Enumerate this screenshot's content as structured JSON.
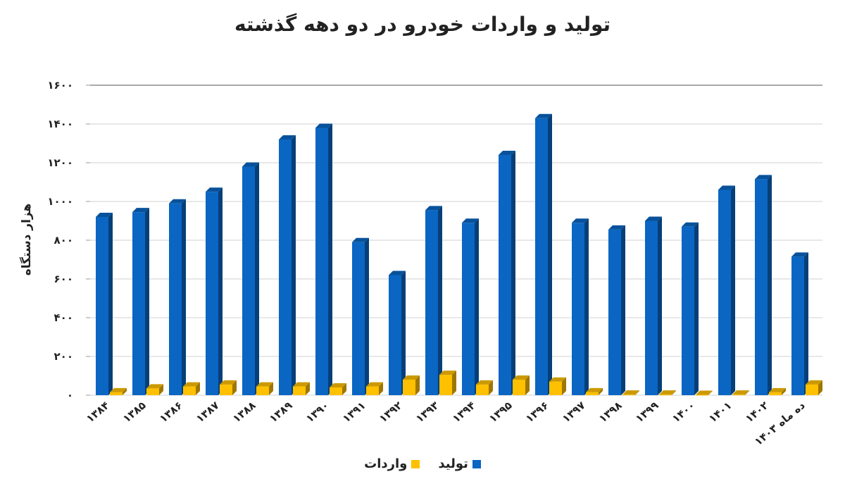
{
  "chart_data": {
    "type": "bar",
    "title": "تولید و واردات خودرو در دو دهه گذشته",
    "ylabel": "هزار دستگاه",
    "xlabel": "",
    "ylim": [
      0,
      1600
    ],
    "yticks": [
      "۰",
      "۲۰۰",
      "۴۰۰",
      "۶۰۰",
      "۸۰۰",
      "۱۰۰۰",
      "۱۲۰۰",
      "۱۴۰۰",
      "۱۶۰۰"
    ],
    "ytick_values": [
      0,
      200,
      400,
      600,
      800,
      1000,
      1200,
      1400,
      1600
    ],
    "categories": [
      "۱۳۸۴",
      "۱۳۸۵",
      "۱۳۸۶",
      "۱۳۸۷",
      "۱۳۸۸",
      "۱۳۸۹",
      "۱۳۹۰",
      "۱۳۹۱",
      "۱۳۹۲",
      "۱۳۹۳",
      "۱۳۹۴",
      "۱۳۹۵",
      "۱۳۹۶",
      "۱۳۹۷",
      "۱۳۹۸",
      "۱۳۹۹",
      "۱۴۰۰",
      "۱۴۰۱",
      "۱۴۰۲",
      "۱۴۰۳ ده ماه"
    ],
    "series": [
      {
        "name": "تولید",
        "color": "#0a66c2",
        "values": [
          920,
          945,
          990,
          1050,
          1180,
          1320,
          1380,
          790,
          620,
          955,
          890,
          1240,
          1430,
          890,
          855,
          900,
          870,
          1060,
          1115,
          715
        ]
      },
      {
        "name": "واردات",
        "color": "#ffc000",
        "values": [
          15,
          35,
          45,
          55,
          45,
          45,
          40,
          45,
          80,
          105,
          55,
          80,
          70,
          15,
          3,
          3,
          2,
          3,
          15,
          55
        ]
      }
    ],
    "grid": true,
    "legend": "bottom-center"
  }
}
